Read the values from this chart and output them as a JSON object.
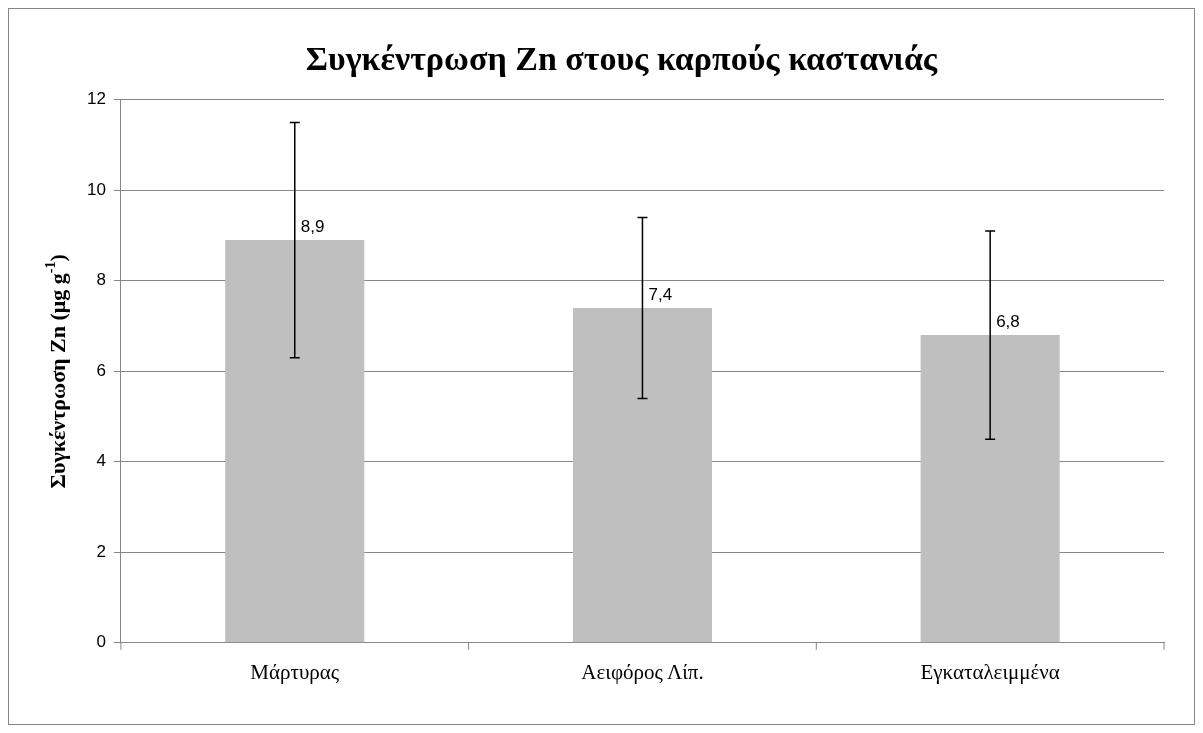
{
  "chart_data": {
    "type": "bar",
    "title": "Συγκέντρωση Zn στους καρπούς καστανιάς",
    "ylabel": "Συγκέντρωση Zn (μg g$^{-1}$)",
    "categories": [
      "Μάρτυρας",
      "Αειφόρος Λίπ.",
      "Εγκαταλειμμένα"
    ],
    "values": [
      8.9,
      7.4,
      6.8
    ],
    "value_labels": [
      "8,9",
      "7,4",
      "6,8"
    ],
    "errors": [
      2.6,
      2.0,
      2.3
    ],
    "color": "#bfbfbf",
    "ylim": [
      0,
      12
    ],
    "yticks": [
      0,
      2,
      4,
      6,
      8,
      10,
      12
    ],
    "grid": "y",
    "legend": false
  }
}
